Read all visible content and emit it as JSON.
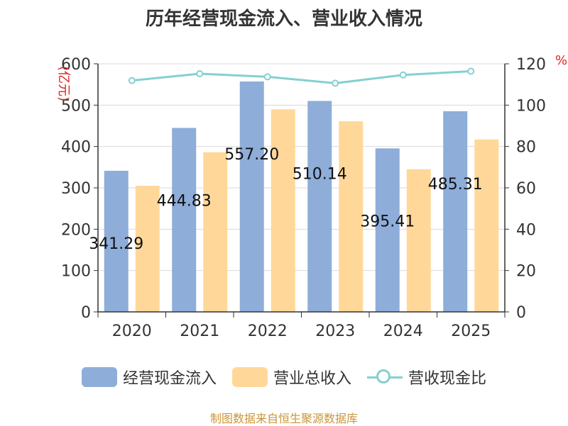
{
  "title": "历年经营现金流入、营业收入情况",
  "source": "制图数据来自恒生聚源数据库",
  "left_unit": "(亿元)",
  "right_unit": "%",
  "colors": {
    "cash": "#8eadd9",
    "revenue": "#ffd899",
    "ratio": "#84d0d0",
    "axis_unit": "#e02020"
  },
  "legend": [
    "经营现金流入",
    "营业总收入",
    "营收现金比"
  ],
  "chart_data": {
    "type": "bar",
    "categories": [
      "2020",
      "2021",
      "2022",
      "2023",
      "2024",
      "2025"
    ],
    "series": [
      {
        "name": "经营现金流入",
        "type": "bar",
        "axis": "left",
        "values": [
          341.29,
          444.83,
          557.2,
          510.14,
          395.41,
          485.31
        ],
        "labels": [
          "341.29",
          "444.83",
          "557.20",
          "510.14",
          "395.41",
          "485.31"
        ]
      },
      {
        "name": "营业总收入",
        "type": "bar",
        "axis": "left",
        "values": [
          305,
          386,
          490,
          461,
          345,
          417
        ]
      },
      {
        "name": "营收现金比",
        "type": "line",
        "axis": "right",
        "values": [
          111.9,
          115.2,
          113.7,
          110.6,
          114.6,
          116.4
        ]
      }
    ],
    "ylim": [
      0,
      600
    ],
    "y_ticks": [
      "0",
      "100",
      "200",
      "300",
      "400",
      "500",
      "600"
    ],
    "y2lim": [
      0,
      120
    ],
    "y2_ticks": [
      "0",
      "20",
      "40",
      "60",
      "80",
      "100",
      "120"
    ],
    "grid": true,
    "legend_position": "bottom"
  }
}
